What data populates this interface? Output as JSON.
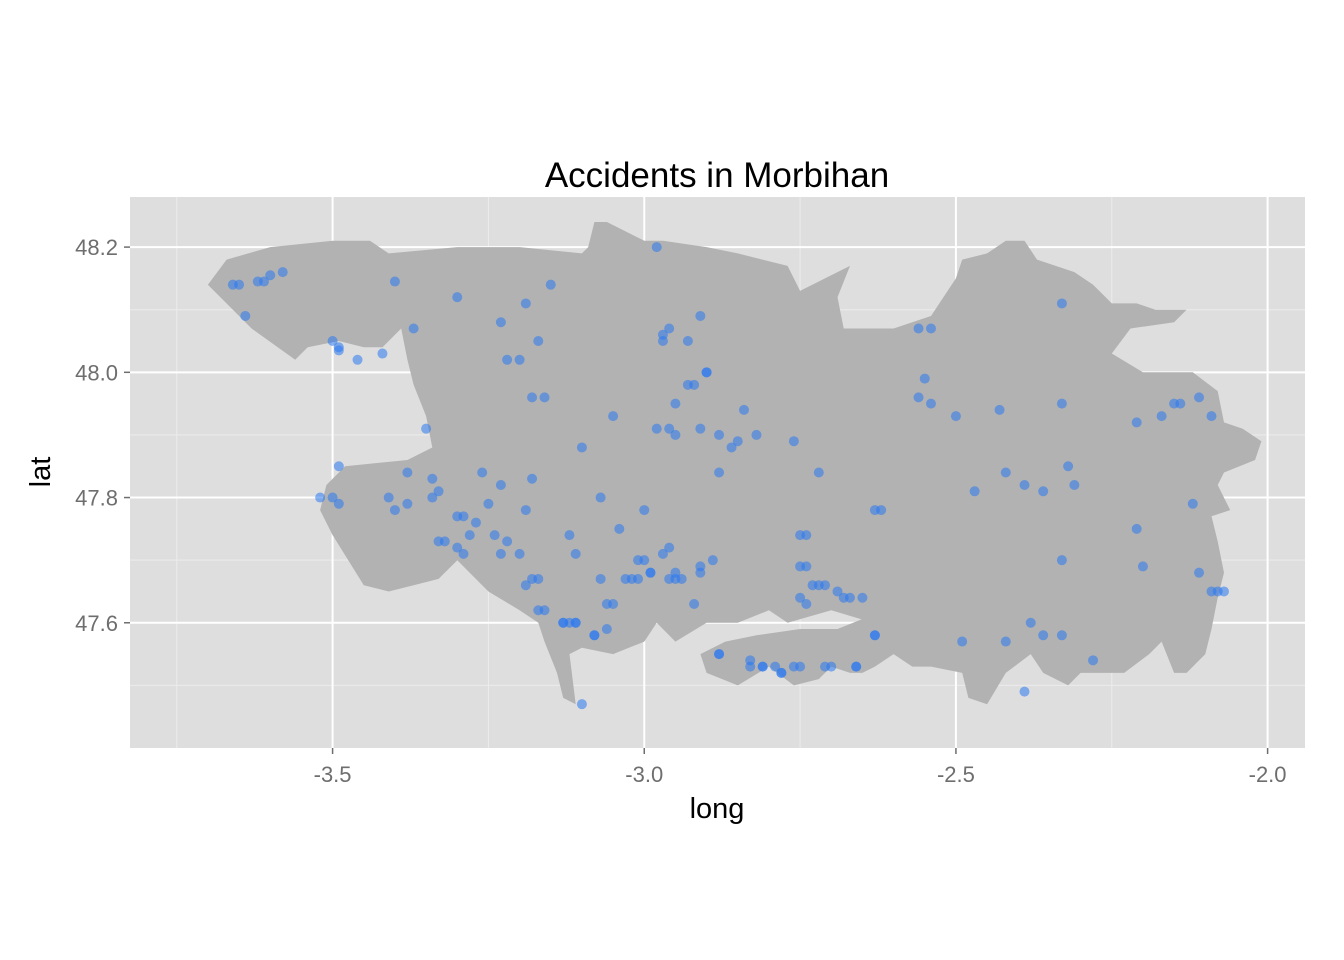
{
  "chart_data": {
    "type": "scatter",
    "title": "Accidents in Morbihan",
    "xlabel": "long",
    "ylabel": "lat",
    "xlim": [
      -3.825,
      -1.94
    ],
    "ylim": [
      47.4,
      48.28
    ],
    "x_ticks": [
      -3.5,
      -3.0,
      -2.5,
      -2.0
    ],
    "x_tick_labels": [
      "-3.5",
      "-3.0",
      "-2.5",
      "-2.0"
    ],
    "y_ticks": [
      47.6,
      47.8,
      48.0,
      48.2
    ],
    "y_tick_labels": [
      "47.6",
      "47.8",
      "48.0",
      "48.2"
    ],
    "grid": true,
    "legend": "none",
    "panel_background": "#dedede",
    "region_fill": "#b2b2b2",
    "point_color": "#2a78f0",
    "region_outline": [
      [
        -3.7,
        48.14
      ],
      [
        -3.67,
        48.18
      ],
      [
        -3.6,
        48.2
      ],
      [
        -3.5,
        48.21
      ],
      [
        -3.44,
        48.21
      ],
      [
        -3.41,
        48.19
      ],
      [
        -3.3,
        48.2
      ],
      [
        -3.2,
        48.2
      ],
      [
        -3.1,
        48.19
      ],
      [
        -3.09,
        48.2
      ],
      [
        -3.08,
        48.24
      ],
      [
        -3.06,
        48.24
      ],
      [
        -3.0,
        48.21
      ],
      [
        -2.97,
        48.21
      ],
      [
        -2.9,
        48.2
      ],
      [
        -2.85,
        48.19
      ],
      [
        -2.77,
        48.17
      ],
      [
        -2.75,
        48.13
      ],
      [
        -2.71,
        48.15
      ],
      [
        -2.67,
        48.17
      ],
      [
        -2.69,
        48.12
      ],
      [
        -2.68,
        48.07
      ],
      [
        -2.6,
        48.07
      ],
      [
        -2.54,
        48.09
      ],
      [
        -2.5,
        48.15
      ],
      [
        -2.49,
        48.18
      ],
      [
        -2.45,
        48.19
      ],
      [
        -2.42,
        48.21
      ],
      [
        -2.39,
        48.21
      ],
      [
        -2.37,
        48.18
      ],
      [
        -2.31,
        48.16
      ],
      [
        -2.28,
        48.14
      ],
      [
        -2.25,
        48.11
      ],
      [
        -2.21,
        48.11
      ],
      [
        -2.18,
        48.1
      ],
      [
        -2.13,
        48.1
      ],
      [
        -2.15,
        48.08
      ],
      [
        -2.22,
        48.07
      ],
      [
        -2.25,
        48.03
      ],
      [
        -2.2,
        48.0
      ],
      [
        -2.12,
        48.0
      ],
      [
        -2.08,
        47.97
      ],
      [
        -2.07,
        47.92
      ],
      [
        -2.04,
        47.91
      ],
      [
        -2.01,
        47.89
      ],
      [
        -2.02,
        47.86
      ],
      [
        -2.07,
        47.84
      ],
      [
        -2.08,
        47.82
      ],
      [
        -2.06,
        47.78
      ],
      [
        -2.09,
        47.77
      ],
      [
        -2.08,
        47.73
      ],
      [
        -2.07,
        47.68
      ],
      [
        -2.08,
        47.64
      ],
      [
        -2.09,
        47.59
      ],
      [
        -2.1,
        47.55
      ],
      [
        -2.13,
        47.52
      ],
      [
        -2.15,
        47.52
      ],
      [
        -2.17,
        47.57
      ],
      [
        -2.19,
        47.55
      ],
      [
        -2.23,
        47.52
      ],
      [
        -2.3,
        47.52
      ],
      [
        -2.32,
        47.5
      ],
      [
        -2.36,
        47.52
      ],
      [
        -2.38,
        47.55
      ],
      [
        -2.42,
        47.52
      ],
      [
        -2.45,
        47.47
      ],
      [
        -2.48,
        47.48
      ],
      [
        -2.49,
        47.52
      ],
      [
        -2.54,
        47.53
      ],
      [
        -2.57,
        47.53
      ],
      [
        -2.6,
        47.55
      ],
      [
        -2.63,
        47.53
      ],
      [
        -2.65,
        47.52
      ],
      [
        -2.67,
        47.52
      ],
      [
        -2.7,
        47.53
      ],
      [
        -2.72,
        47.51
      ],
      [
        -2.76,
        47.5
      ],
      [
        -2.8,
        47.53
      ],
      [
        -2.85,
        47.5
      ],
      [
        -2.9,
        47.52
      ],
      [
        -2.91,
        47.55
      ],
      [
        -2.87,
        47.57
      ],
      [
        -2.82,
        47.58
      ],
      [
        -2.75,
        47.59
      ],
      [
        -2.69,
        47.59
      ],
      [
        -2.64,
        47.61
      ],
      [
        -2.6,
        47.59
      ],
      [
        -2.7,
        47.62
      ],
      [
        -2.77,
        47.6
      ],
      [
        -2.8,
        47.62
      ],
      [
        -2.85,
        47.6
      ],
      [
        -2.9,
        47.6
      ],
      [
        -2.95,
        47.57
      ],
      [
        -2.98,
        47.6
      ],
      [
        -3.0,
        47.57
      ],
      [
        -3.05,
        47.55
      ],
      [
        -3.1,
        47.56
      ],
      [
        -3.12,
        47.55
      ],
      [
        -3.11,
        47.47
      ],
      [
        -3.13,
        47.48
      ],
      [
        -3.14,
        47.52
      ],
      [
        -3.16,
        47.57
      ],
      [
        -3.17,
        47.6
      ],
      [
        -3.2,
        47.62
      ],
      [
        -3.25,
        47.65
      ],
      [
        -3.3,
        47.7
      ],
      [
        -3.33,
        47.67
      ],
      [
        -3.37,
        47.66
      ],
      [
        -3.41,
        47.65
      ],
      [
        -3.45,
        47.66
      ],
      [
        -3.5,
        47.74
      ],
      [
        -3.52,
        47.78
      ],
      [
        -3.51,
        47.82
      ],
      [
        -3.48,
        47.85
      ],
      [
        -3.38,
        47.86
      ],
      [
        -3.34,
        47.88
      ],
      [
        -3.35,
        47.93
      ],
      [
        -3.37,
        47.98
      ],
      [
        -3.38,
        48.02
      ],
      [
        -3.39,
        48.07
      ],
      [
        -3.42,
        48.04
      ],
      [
        -3.45,
        48.04
      ],
      [
        -3.49,
        48.05
      ],
      [
        -3.54,
        48.04
      ],
      [
        -3.56,
        48.02
      ],
      [
        -3.63,
        48.07
      ],
      [
        -3.66,
        48.1
      ],
      [
        -3.7,
        48.14
      ]
    ],
    "series": [
      {
        "x": [
          -3.66,
          -3.65,
          -3.64,
          -3.62,
          -3.61,
          -3.6,
          -3.58,
          -3.4,
          -3.3,
          -3.23,
          -3.19,
          -3.15,
          -3.37,
          -3.42,
          -3.5,
          -3.49,
          -3.46,
          -3.49,
          -3.2,
          -3.17,
          -3.22,
          -3.18,
          -3.16,
          -3.1,
          -3.05,
          -2.98,
          -2.97,
          -2.96,
          -2.97,
          -2.93,
          -2.91,
          -2.9,
          -2.92,
          -2.88,
          -2.85,
          -2.82,
          -2.84,
          -2.86,
          -2.88,
          -2.76,
          -2.98,
          -3.04,
          -3.35,
          -3.34,
          -3.33,
          -3.34,
          -3.38,
          -3.41,
          -3.4,
          -3.49,
          -3.5,
          -3.52,
          -3.49,
          -3.38,
          -3.3,
          -3.29,
          -3.26,
          -3.27,
          -3.25,
          -3.23,
          -3.22,
          -3.2,
          -3.23,
          -3.24,
          -3.28,
          -3.3,
          -3.29,
          -3.32,
          -3.33,
          -3.18,
          -3.19,
          -3.18,
          -3.17,
          -3.12,
          -3.11,
          -3.07,
          -3.06,
          -3.05,
          -3.03,
          -3.01,
          -3.0,
          -3.0,
          -2.99,
          -2.97,
          -2.96,
          -2.95,
          -2.92,
          -2.91,
          -2.91,
          -2.89,
          -2.88,
          -2.83,
          -2.81,
          -2.78,
          -2.76,
          -2.75,
          -2.74,
          -2.73,
          -2.72,
          -2.71,
          -2.7,
          -2.68,
          -2.67,
          -2.66,
          -2.65,
          -2.63,
          -2.63,
          -2.62,
          -2.55,
          -2.54,
          -2.5,
          -2.47,
          -2.43,
          -2.42,
          -2.39,
          -2.36,
          -2.33,
          -2.32,
          -2.31,
          -2.33,
          -2.56,
          -2.56,
          -2.54,
          -2.33,
          -2.21,
          -2.17,
          -2.15,
          -2.14,
          -2.11,
          -2.09,
          -2.12,
          -2.11,
          -2.09,
          -2.08,
          -2.07,
          -2.21,
          -2.2,
          -2.28,
          -2.33,
          -2.38,
          -2.36,
          -2.42,
          -2.49,
          -2.39,
          -2.63,
          -2.66,
          -2.71,
          -2.75,
          -2.78,
          -2.79,
          -2.81,
          -2.83,
          -2.88,
          -2.94,
          -2.95,
          -2.96,
          -2.99,
          -3.01,
          -3.02,
          -3.06,
          -3.08,
          -3.11,
          -3.12,
          -3.13,
          -3.1,
          -3.13,
          -3.08,
          -3.16,
          -3.17,
          -3.11,
          -3.19,
          -2.93,
          -2.9,
          -2.96,
          -2.95,
          -2.74,
          -2.72,
          -2.74,
          -2.69,
          -2.75,
          -2.75,
          -3.07,
          -2.95,
          -2.91
        ],
        "y": [
          48.14,
          48.14,
          48.09,
          48.145,
          48.145,
          48.155,
          48.16,
          48.145,
          48.12,
          48.08,
          48.11,
          48.14,
          48.07,
          48.03,
          48.05,
          48.04,
          48.02,
          48.035,
          48.02,
          48.05,
          48.02,
          47.96,
          47.96,
          47.88,
          47.93,
          48.2,
          48.05,
          48.07,
          48.06,
          48.05,
          48.09,
          48.0,
          47.98,
          47.9,
          47.89,
          47.9,
          47.94,
          47.88,
          47.84,
          47.89,
          47.91,
          47.75,
          47.91,
          47.83,
          47.81,
          47.8,
          47.84,
          47.8,
          47.78,
          47.85,
          47.8,
          47.8,
          47.79,
          47.79,
          47.77,
          47.77,
          47.84,
          47.76,
          47.79,
          47.82,
          47.73,
          47.71,
          47.71,
          47.74,
          47.74,
          47.72,
          47.71,
          47.73,
          47.73,
          47.83,
          47.78,
          47.67,
          47.62,
          47.74,
          47.71,
          47.67,
          47.63,
          47.63,
          47.67,
          47.67,
          47.7,
          47.78,
          47.68,
          47.71,
          47.72,
          47.67,
          47.63,
          47.69,
          47.68,
          47.7,
          47.55,
          47.53,
          47.53,
          47.52,
          47.53,
          47.64,
          47.63,
          47.66,
          47.84,
          47.66,
          47.53,
          47.64,
          47.64,
          47.53,
          47.64,
          47.58,
          47.78,
          47.78,
          47.99,
          47.95,
          47.93,
          47.81,
          47.94,
          47.84,
          47.82,
          47.81,
          47.7,
          47.85,
          47.82,
          47.95,
          47.96,
          48.07,
          48.07,
          48.11,
          47.92,
          47.93,
          47.95,
          47.95,
          47.96,
          47.93,
          47.79,
          47.68,
          47.65,
          47.65,
          47.65,
          47.75,
          47.69,
          47.54,
          47.58,
          47.6,
          47.58,
          47.57,
          47.57,
          47.49,
          47.58,
          47.53,
          47.53,
          47.53,
          47.52,
          47.53,
          47.53,
          47.54,
          47.55,
          47.67,
          47.68,
          47.67,
          47.68,
          47.7,
          47.67,
          47.59,
          47.58,
          47.6,
          47.6,
          47.6,
          47.47,
          47.6,
          47.58,
          47.62,
          47.67,
          47.6,
          47.66,
          47.98,
          48.0,
          47.91,
          47.9,
          47.69,
          47.66,
          47.74,
          47.65,
          47.69,
          47.74,
          47.8,
          47.95,
          47.91
        ]
      }
    ]
  }
}
